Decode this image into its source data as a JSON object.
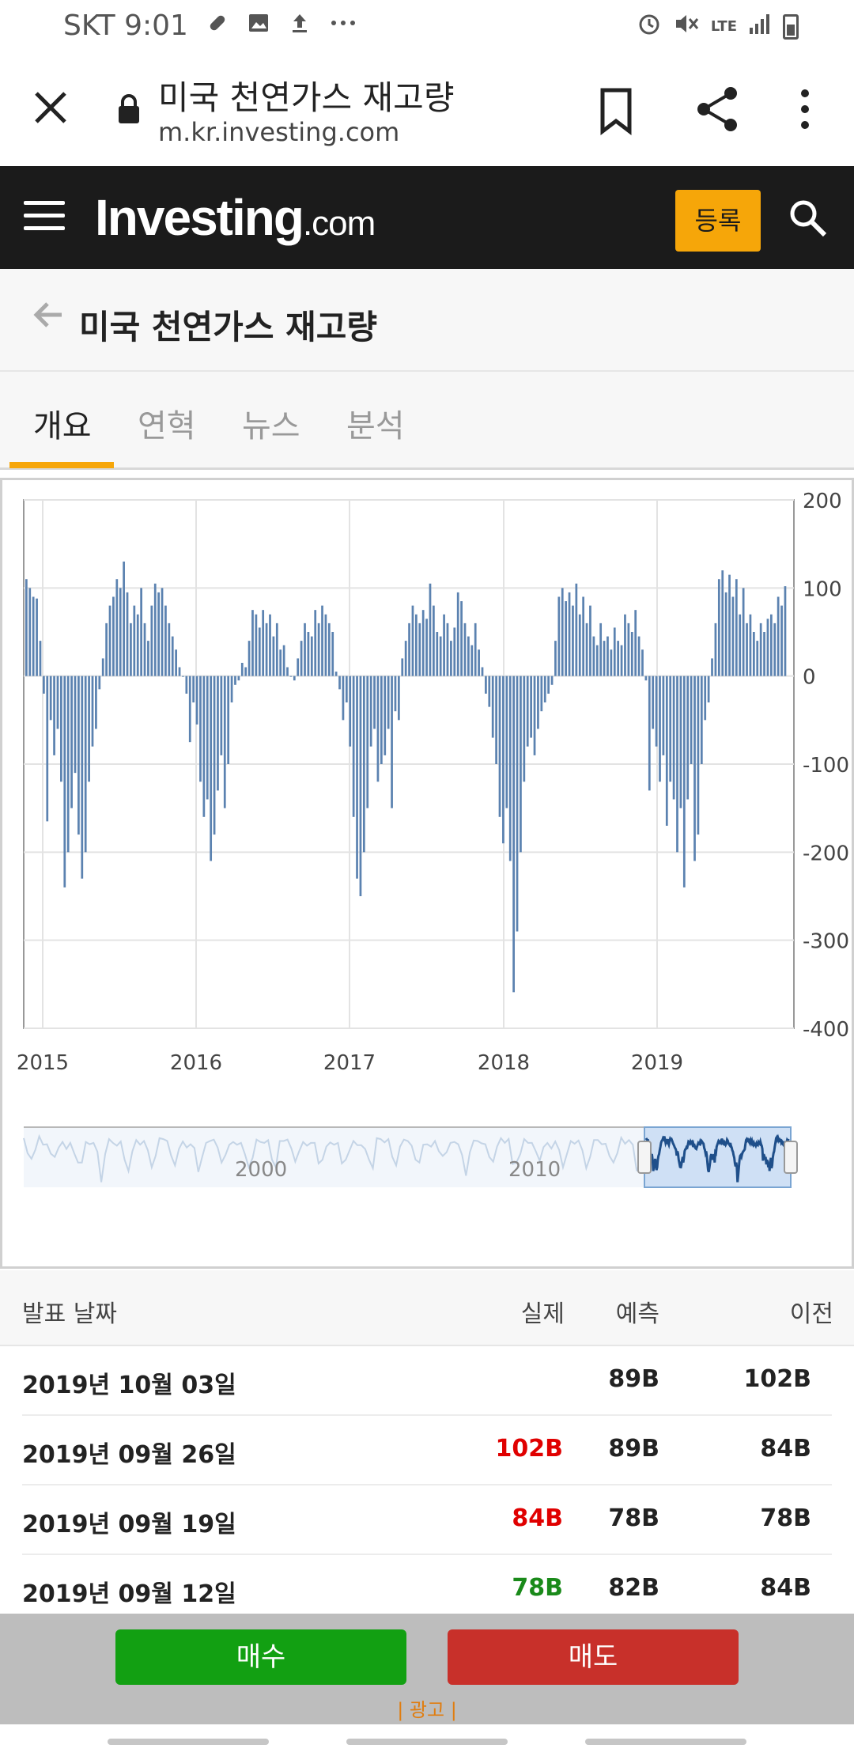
{
  "status_bar": {
    "carrier_time": "SKT 9:01",
    "network": "LTE"
  },
  "browser": {
    "title": "미국 천연가스 재고량",
    "url": "m.kr.investing.com"
  },
  "header": {
    "logo_main": "Investing",
    "logo_com": ".com",
    "signup_label": "등록"
  },
  "page": {
    "heading": "미국 천연가스 재고량"
  },
  "tabs": [
    {
      "label": "개요",
      "active": true
    },
    {
      "label": "연혁",
      "active": false
    },
    {
      "label": "뉴스",
      "active": false
    },
    {
      "label": "분석",
      "active": false
    }
  ],
  "chart_data": {
    "type": "bar",
    "title": "",
    "xlabel": "",
    "ylabel": "",
    "ylim": [
      -400,
      200
    ],
    "yticks": [
      200,
      100,
      0,
      -100,
      -200,
      -300,
      -400
    ],
    "xticks": [
      "2015",
      "2016",
      "2017",
      "2018",
      "2019"
    ],
    "navigator_labels": [
      "2000",
      "2010"
    ],
    "series": [
      {
        "name": "미국 천연가스 재고량",
        "color": "#5b82b0",
        "values": [
          110,
          100,
          90,
          88,
          40,
          -20,
          -165,
          -50,
          -90,
          -60,
          -120,
          -240,
          -200,
          -150,
          -110,
          -180,
          -230,
          -200,
          -120,
          -80,
          -60,
          -15,
          20,
          60,
          80,
          90,
          110,
          100,
          130,
          95,
          60,
          80,
          70,
          100,
          60,
          40,
          80,
          105,
          95,
          100,
          80,
          60,
          45,
          30,
          10,
          0,
          -20,
          -75,
          -30,
          -55,
          -120,
          -160,
          -140,
          -210,
          -180,
          -130,
          -90,
          -150,
          -100,
          -30,
          -10,
          -5,
          15,
          10,
          40,
          75,
          70,
          55,
          75,
          60,
          70,
          45,
          60,
          30,
          35,
          10,
          0,
          -5,
          20,
          40,
          60,
          50,
          45,
          75,
          60,
          80,
          70,
          60,
          50,
          5,
          -15,
          -50,
          -30,
          -80,
          -160,
          -230,
          -250,
          -200,
          -150,
          -80,
          -60,
          -120,
          -100,
          -90,
          -60,
          -150,
          -40,
          -50,
          20,
          40,
          60,
          80,
          70,
          60,
          75,
          65,
          105,
          80,
          50,
          45,
          70,
          60,
          40,
          55,
          95,
          85,
          60,
          45,
          35,
          60,
          30,
          10,
          -20,
          -35,
          -70,
          -100,
          -160,
          -190,
          -150,
          -210,
          -359,
          -290,
          -200,
          -120,
          -80,
          -70,
          -90,
          -60,
          -40,
          -30,
          -20,
          -10,
          40,
          90,
          100,
          85,
          95,
          80,
          105,
          70,
          90,
          60,
          80,
          45,
          35,
          60,
          40,
          45,
          30,
          55,
          40,
          35,
          70,
          60,
          50,
          75,
          45,
          30,
          -5,
          -130,
          -60,
          -80,
          -120,
          -90,
          -170,
          -120,
          -140,
          -200,
          -150,
          -240,
          -140,
          -100,
          -210,
          -180,
          -100,
          -50,
          -30,
          20,
          60,
          110,
          120,
          95,
          115,
          90,
          110,
          70,
          100,
          60,
          70,
          50,
          40,
          60,
          50,
          65,
          70,
          60,
          90,
          80,
          102
        ]
      }
    ]
  },
  "table": {
    "headers": {
      "date": "발표 날짜",
      "actual": "실제",
      "forecast": "예측",
      "previous": "이전"
    },
    "rows": [
      {
        "date": "2019년 10월 03일",
        "actual": "",
        "actual_color": "#222222",
        "forecast": "89B",
        "previous": "102B"
      },
      {
        "date": "2019년 09월 26일",
        "actual": "102B",
        "actual_color": "#e00000",
        "forecast": "89B",
        "previous": "84B"
      },
      {
        "date": "2019년 09월 19일",
        "actual": "84B",
        "actual_color": "#e00000",
        "forecast": "78B",
        "previous": "78B"
      },
      {
        "date": "2019년 09월 12일",
        "actual": "78B",
        "actual_color": "#1a8a1a",
        "forecast": "82B",
        "previous": "84B"
      }
    ]
  },
  "trade": {
    "buy_label": "매수",
    "sell_label": "매도",
    "ad_label": "| 광고 |"
  },
  "colors": {
    "accent": "#f6a609",
    "header_bg": "#1b1b1b",
    "buy": "#12a012",
    "sell": "#c8302a",
    "bar": "#5b82b0"
  }
}
